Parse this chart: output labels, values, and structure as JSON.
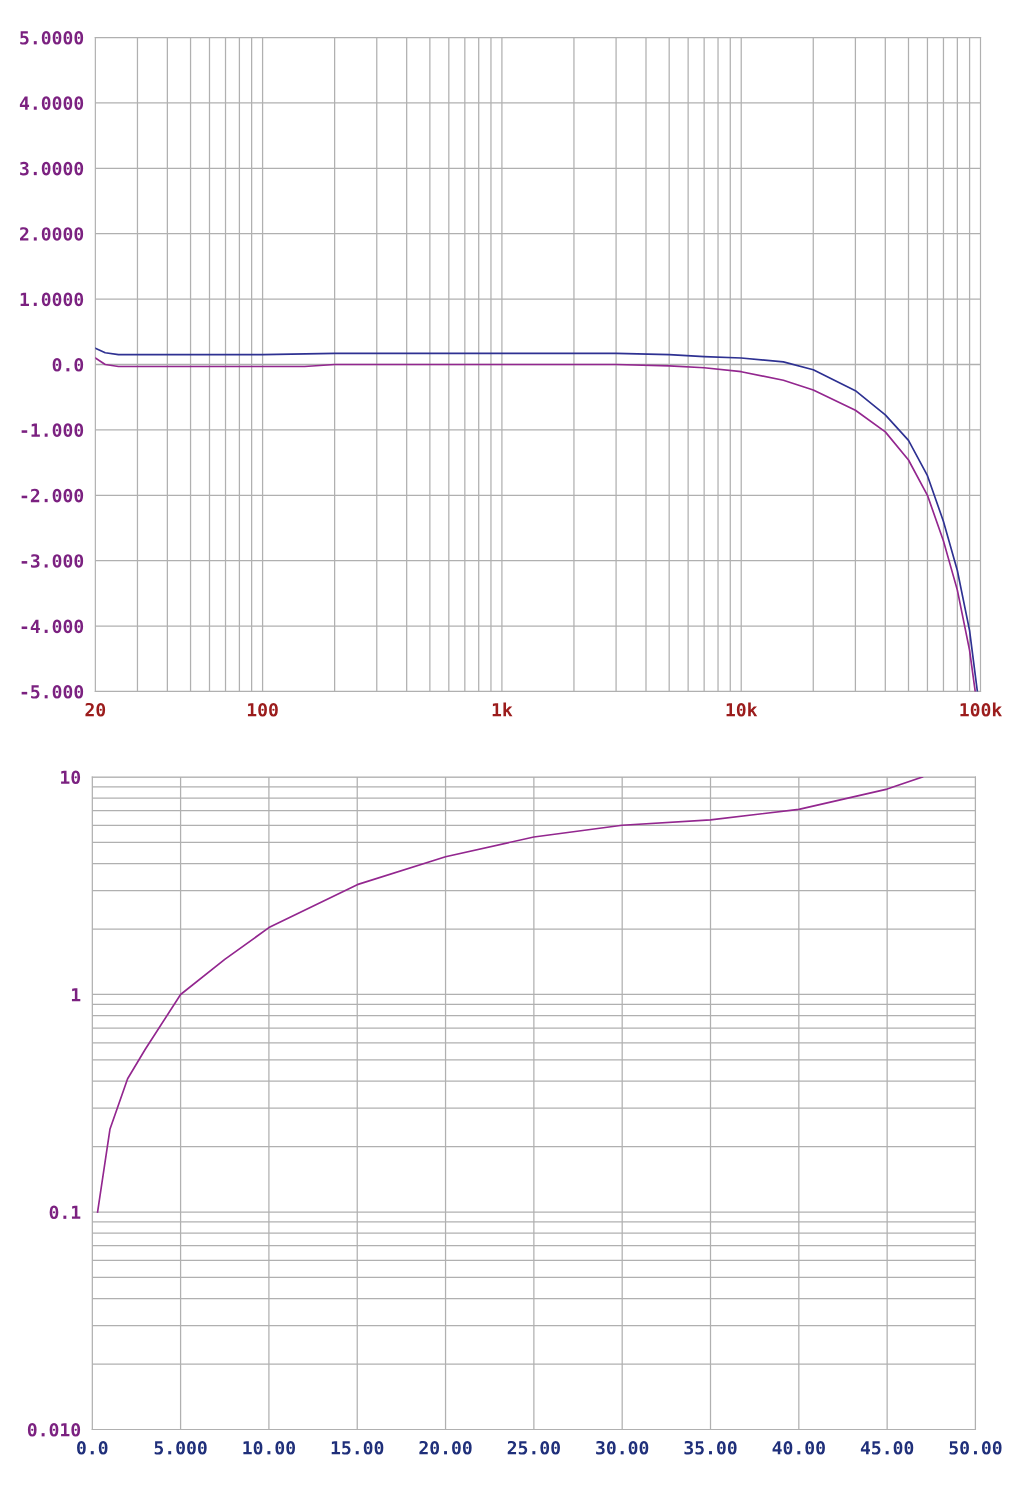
{
  "chart_data": [
    {
      "type": "line",
      "log": "x",
      "grid": true,
      "xlim": [
        20,
        100000
      ],
      "ylim": [
        -5,
        5
      ],
      "xticks": [
        20,
        100,
        {
          "value": 1000,
          "label": "1k"
        },
        {
          "value": 10000,
          "label": "10k"
        },
        {
          "value": 100000,
          "label": "100k"
        }
      ],
      "yticks": [
        {
          "value": 5,
          "label": "5.0000"
        },
        {
          "value": 4,
          "label": "4.0000"
        },
        {
          "value": 3,
          "label": "3.0000"
        },
        {
          "value": 2,
          "label": "2.0000"
        },
        {
          "value": 1,
          "label": "1.0000"
        },
        {
          "value": 0,
          "label": "0.0"
        },
        {
          "value": -1,
          "label": "-1.000"
        },
        {
          "value": -2,
          "label": "-2.000"
        },
        {
          "value": -3,
          "label": "-3.000"
        },
        {
          "value": -4,
          "label": "-4.000"
        },
        {
          "value": -5,
          "label": "-5.000"
        }
      ],
      "series": [
        {
          "color": "#2e3192",
          "x": [
            20,
            22,
            25,
            50,
            100,
            200,
            500,
            1000,
            3000,
            5000,
            7000,
            10000,
            15000,
            20000,
            30000,
            40000,
            50000,
            60000,
            70000,
            80000,
            90000,
            97000
          ],
          "values": [
            0.25,
            0.18,
            0.15,
            0.15,
            0.15,
            0.17,
            0.17,
            0.17,
            0.17,
            0.15,
            0.12,
            0.1,
            0.04,
            -0.08,
            -0.4,
            -0.77,
            -1.16,
            -1.7,
            -2.4,
            -3.15,
            -4.07,
            -5
          ]
        },
        {
          "color": "#93278f",
          "x": [
            20,
            22,
            25,
            50,
            100,
            150,
            200,
            500,
            1000,
            3000,
            5000,
            7000,
            10000,
            15000,
            20000,
            30000,
            40000,
            50000,
            60000,
            70000,
            80000,
            90000,
            95000
          ],
          "values": [
            0.1,
            0.0,
            -0.03,
            -0.03,
            -0.03,
            -0.03,
            0.0,
            0.0,
            0.0,
            0.0,
            -0.02,
            -0.05,
            -0.11,
            -0.24,
            -0.39,
            -0.7,
            -1.03,
            -1.46,
            -2.0,
            -2.7,
            -3.45,
            -4.37,
            -5
          ]
        }
      ]
    },
    {
      "type": "line",
      "log": "y",
      "grid": true,
      "xlim": [
        0,
        50
      ],
      "ylim": [
        0.01,
        10
      ],
      "xticks": [
        {
          "value": 0,
          "label": "0.0"
        },
        {
          "value": 5,
          "label": "5.000"
        },
        {
          "value": 10,
          "label": "10.00"
        },
        {
          "value": 15,
          "label": "15.00"
        },
        {
          "value": 20,
          "label": "20.00"
        },
        {
          "value": 25,
          "label": "25.00"
        },
        {
          "value": 30,
          "label": "30.00"
        },
        {
          "value": 35,
          "label": "35.00"
        },
        {
          "value": 40,
          "label": "40.00"
        },
        {
          "value": 45,
          "label": "45.00"
        },
        {
          "value": 50,
          "label": "50.00"
        }
      ],
      "yticks": [
        {
          "value": 10,
          "label": "10"
        },
        {
          "value": 1,
          "label": "1"
        },
        {
          "value": 0.1,
          "label": "0.1"
        },
        {
          "value": 0.01,
          "label": "0.010"
        }
      ],
      "series": [
        {
          "color": "#93278f",
          "x": [
            0.3,
            1,
            2,
            3,
            5,
            7.5,
            10,
            15,
            20,
            25,
            30,
            35,
            40,
            45,
            47
          ],
          "values": [
            0.1,
            0.24,
            0.41,
            0.56,
            1.0,
            1.45,
            2.03,
            3.2,
            4.3,
            5.3,
            6.0,
            6.35,
            7.1,
            8.8,
            10
          ]
        }
      ]
    }
  ]
}
